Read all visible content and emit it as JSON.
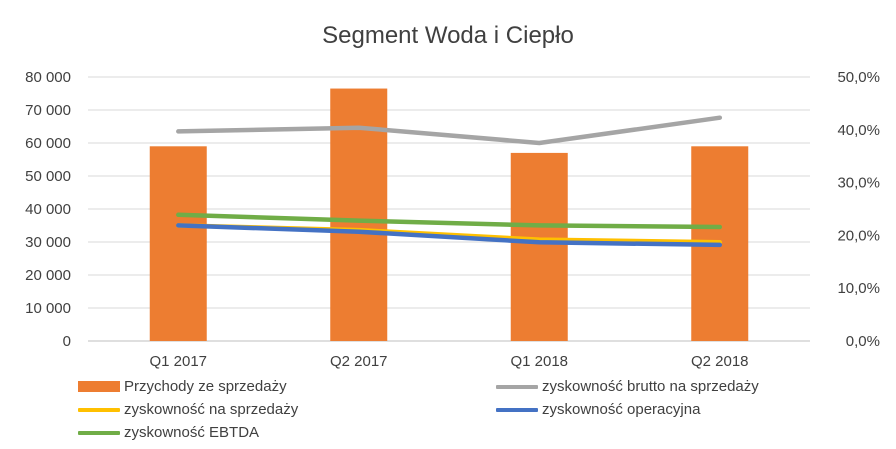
{
  "chart_data": {
    "type": "bar",
    "title": "Segment Woda i Ciepło",
    "categories": [
      "Q1 2017",
      "Q2 2017",
      "Q1 2018",
      "Q2 2018"
    ],
    "y_left": {
      "ylim": [
        0,
        80000
      ],
      "ticks": [
        0,
        10000,
        20000,
        30000,
        40000,
        50000,
        60000,
        70000,
        80000
      ],
      "tick_labels": [
        "0",
        "10 000",
        "20 000",
        "30 000",
        "40 000",
        "50 000",
        "60 000",
        "70 000",
        "80 000"
      ]
    },
    "y_right": {
      "ylim": [
        0,
        0.5
      ],
      "ticks": [
        0,
        0.1,
        0.2,
        0.3,
        0.4,
        0.5
      ],
      "tick_labels": [
        "0,0%",
        "10,0%",
        "20,0%",
        "30,0%",
        "40,0%",
        "50,0%"
      ]
    },
    "bar_series": {
      "name": "Przychody ze sprzedaży",
      "color": "#ED7D31",
      "values": [
        59000,
        76500,
        57000,
        59000
      ],
      "axis": "left"
    },
    "line_series": [
      {
        "name": "zyskowność brutto na sprzedaży",
        "color": "#A5A5A5",
        "values": [
          0.397,
          0.404,
          0.375,
          0.423
        ],
        "axis": "right"
      },
      {
        "name": "zyskowność na sprzedaży",
        "color": "#FFC000",
        "values": [
          0.219,
          0.21,
          0.192,
          0.187
        ],
        "axis": "right"
      },
      {
        "name": "zyskowność operacyjna",
        "color": "#4472C4",
        "values": [
          0.219,
          0.207,
          0.187,
          0.182
        ],
        "axis": "right"
      },
      {
        "name": "zyskowność EBTDA",
        "color": "#70AD47",
        "values": [
          0.239,
          0.228,
          0.219,
          0.216
        ],
        "axis": "right"
      }
    ],
    "grid": true,
    "legend_position": "bottom"
  }
}
